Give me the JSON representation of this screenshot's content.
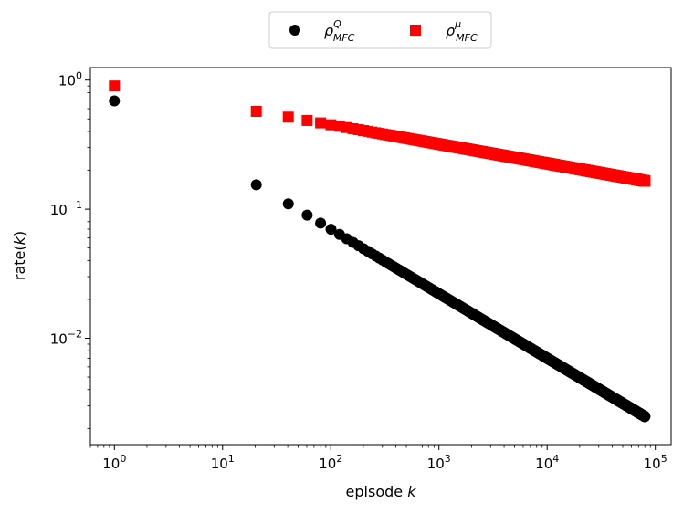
{
  "chart_data": {
    "type": "scatter",
    "title": "",
    "xlabel": "episode",
    "xlabel_var": "k",
    "ylabel": "rate(",
    "ylabel_var": "k",
    "ylabel_close": ")",
    "xscale": "log",
    "yscale": "log",
    "xlim": [
      0.6,
      140000
    ],
    "ylim": [
      0.0015,
      1.25
    ],
    "grid": false,
    "legend_placement": "top-center (outside plot)",
    "x_ticks": [
      {
        "value": 1,
        "base": "10",
        "exp": "0"
      },
      {
        "value": 10,
        "base": "10",
        "exp": "1"
      },
      {
        "value": 100,
        "base": "10",
        "exp": "2"
      },
      {
        "value": 1000,
        "base": "10",
        "exp": "3"
      },
      {
        "value": 10000,
        "base": "10",
        "exp": "4"
      },
      {
        "value": 100000,
        "base": "10",
        "exp": "5"
      }
    ],
    "y_ticks": [
      {
        "value": 1,
        "base": "10",
        "exp": "0"
      },
      {
        "value": 0.1,
        "base": "10",
        "exp": "−1"
      },
      {
        "value": 0.01,
        "base": "10",
        "exp": "−2"
      }
    ],
    "series": [
      {
        "name": "ρ",
        "name_sup": "Q",
        "name_sub": "MFC",
        "marker": "circle",
        "color": "#000000",
        "sampling": "x = 1 and x = 20.5 to 80000 step 20",
        "law": "y = 0.7 * x^-0.5",
        "x": [
          1,
          20.5,
          40.5,
          60.5,
          80.5,
          100.5,
          200,
          500,
          1000,
          5000,
          10000,
          50000,
          80000
        ],
        "y": [
          0.69,
          0.18,
          0.128,
          0.103,
          0.088,
          0.078,
          0.05,
          0.031,
          0.022,
          0.0099,
          0.007,
          0.0031,
          0.0021
        ]
      },
      {
        "name": "ρ",
        "name_sup": "μ",
        "name_sub": "MFC",
        "marker": "square",
        "color": "#ff0000",
        "sampling": "x = 1 and x = 20.5 to 80000 step 20",
        "law": "y = 0.9 * x^-0.15",
        "x": [
          1,
          20.5,
          40.5,
          60.5,
          80.5,
          100.5,
          200,
          500,
          1000,
          5000,
          10000,
          50000,
          80000
        ],
        "y": [
          0.9,
          0.61,
          0.57,
          0.54,
          0.52,
          0.5,
          0.47,
          0.41,
          0.38,
          0.29,
          0.26,
          0.21,
          0.185
        ]
      }
    ]
  }
}
